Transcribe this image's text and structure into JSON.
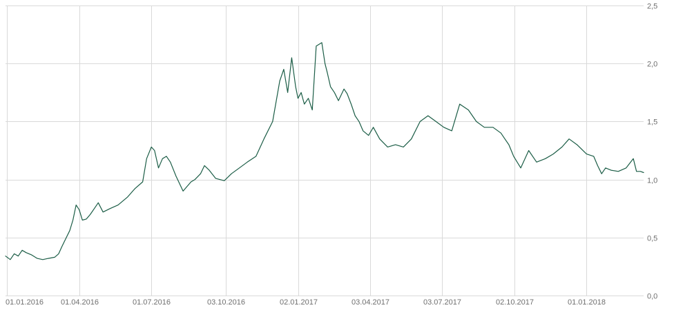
{
  "colors": {
    "line": "#1a5c45",
    "grid": "#d9d9d9",
    "text": "#6f6f6f",
    "background": "#ffffff"
  },
  "chart_data": {
    "type": "line",
    "title": "",
    "xlabel": "",
    "ylabel": "",
    "grid": true,
    "legend": "none",
    "y_axis_side": "right",
    "xlim": [
      "2015-12-30",
      "2018-03-14"
    ],
    "ylim": [
      0,
      2.5
    ],
    "x_ticks": [
      "2016-01-01",
      "2016-04-01",
      "2016-07-01",
      "2016-10-03",
      "2017-01-02",
      "2017-04-03",
      "2017-07-03",
      "2017-10-02",
      "2018-01-01"
    ],
    "x_tick_labels": [
      "01.01.2016",
      "01.04.2016",
      "01.07.2016",
      "03.10.2016",
      "02.01.2017",
      "03.04.2017",
      "03.07.2017",
      "02.10.2017",
      "01.01.2018"
    ],
    "y_ticks": [
      0,
      0.5,
      1,
      1.5,
      2,
      2.5
    ],
    "y_tick_labels": [
      "0,0",
      "0,5",
      "1,0",
      "1,5",
      "2,0",
      "2,5"
    ],
    "series": [
      {
        "color": "#1a5c45",
        "x": [
          "2015-12-30",
          "2016-01-05",
          "2016-01-10",
          "2016-01-15",
          "2016-01-20",
          "2016-01-25",
          "2016-02-01",
          "2016-02-08",
          "2016-02-15",
          "2016-02-22",
          "2016-03-01",
          "2016-03-06",
          "2016-03-10",
          "2016-03-15",
          "2016-03-20",
          "2016-03-24",
          "2016-03-28",
          "2016-04-01",
          "2016-04-05",
          "2016-04-10",
          "2016-04-15",
          "2016-04-20",
          "2016-04-25",
          "2016-05-01",
          "2016-05-10",
          "2016-05-20",
          "2016-06-01",
          "2016-06-10",
          "2016-06-20",
          "2016-06-25",
          "2016-07-01",
          "2016-07-05",
          "2016-07-10",
          "2016-07-15",
          "2016-07-20",
          "2016-07-25",
          "2016-08-01",
          "2016-08-10",
          "2016-08-20",
          "2016-08-25",
          "2016-09-01",
          "2016-09-06",
          "2016-09-12",
          "2016-09-20",
          "2016-10-01",
          "2016-10-10",
          "2016-10-20",
          "2016-10-30",
          "2016-11-10",
          "2016-11-20",
          "2016-12-01",
          "2016-12-10",
          "2016-12-15",
          "2016-12-20",
          "2016-12-25",
          "2016-12-30",
          "2017-01-02",
          "2017-01-06",
          "2017-01-10",
          "2017-01-15",
          "2017-01-20",
          "2017-01-25",
          "2017-02-01",
          "2017-02-05",
          "2017-02-08",
          "2017-02-12",
          "2017-02-17",
          "2017-02-22",
          "2017-03-01",
          "2017-03-05",
          "2017-03-10",
          "2017-03-15",
          "2017-03-20",
          "2017-03-25",
          "2017-04-01",
          "2017-04-07",
          "2017-04-15",
          "2017-04-25",
          "2017-05-05",
          "2017-05-15",
          "2017-05-25",
          "2017-06-05",
          "2017-06-15",
          "2017-06-25",
          "2017-07-05",
          "2017-07-15",
          "2017-07-25",
          "2017-08-05",
          "2017-08-15",
          "2017-08-25",
          "2017-09-05",
          "2017-09-15",
          "2017-09-20",
          "2017-09-25",
          "2017-10-01",
          "2017-10-10",
          "2017-10-20",
          "2017-10-30",
          "2017-11-10",
          "2017-11-20",
          "2017-12-01",
          "2017-12-10",
          "2017-12-20",
          "2018-01-01",
          "2018-01-10",
          "2018-01-15",
          "2018-01-20",
          "2018-01-25",
          "2018-02-01",
          "2018-02-10",
          "2018-02-20",
          "2018-03-01",
          "2018-03-05",
          "2018-03-10",
          "2018-03-14"
        ],
        "values": [
          0.34,
          0.31,
          0.36,
          0.34,
          0.39,
          0.37,
          0.35,
          0.32,
          0.31,
          0.32,
          0.33,
          0.36,
          0.42,
          0.49,
          0.56,
          0.65,
          0.78,
          0.74,
          0.65,
          0.66,
          0.7,
          0.75,
          0.8,
          0.72,
          0.75,
          0.78,
          0.85,
          0.92,
          0.98,
          1.18,
          1.28,
          1.25,
          1.1,
          1.18,
          1.2,
          1.15,
          1.03,
          0.9,
          0.98,
          1.0,
          1.05,
          1.12,
          1.08,
          1.01,
          0.99,
          1.05,
          1.1,
          1.15,
          1.2,
          1.35,
          1.5,
          1.85,
          1.95,
          1.75,
          2.05,
          1.8,
          1.7,
          1.75,
          1.65,
          1.7,
          1.6,
          2.15,
          2.18,
          2.0,
          1.92,
          1.8,
          1.75,
          1.68,
          1.78,
          1.74,
          1.65,
          1.55,
          1.5,
          1.42,
          1.38,
          1.45,
          1.35,
          1.28,
          1.3,
          1.28,
          1.35,
          1.5,
          1.55,
          1.5,
          1.45,
          1.42,
          1.65,
          1.6,
          1.5,
          1.45,
          1.45,
          1.4,
          1.35,
          1.3,
          1.2,
          1.1,
          1.25,
          1.15,
          1.18,
          1.22,
          1.28,
          1.35,
          1.3,
          1.22,
          1.2,
          1.12,
          1.05,
          1.1,
          1.08,
          1.07,
          1.1,
          1.18,
          1.07,
          1.07,
          1.06
        ]
      }
    ]
  }
}
